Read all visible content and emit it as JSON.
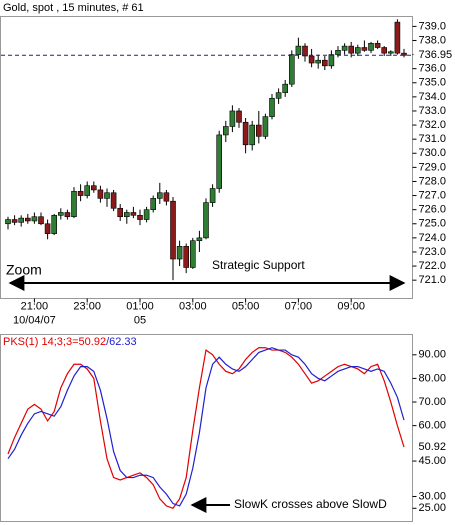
{
  "chart_data": [
    {
      "type": "candlestick",
      "title": "Gold, spot , 15 minutes, # 61",
      "categories": [
        null,
        null,
        null,
        null,
        "21:00",
        null,
        null,
        null,
        null,
        null,
        null,
        null,
        "23:00",
        null,
        null,
        null,
        null,
        null,
        null,
        null,
        "01:00",
        null,
        null,
        null,
        null,
        null,
        null,
        null,
        "03:00",
        null,
        null,
        null,
        null,
        null,
        null,
        null,
        "05:00",
        null,
        null,
        null,
        null,
        null,
        null,
        null,
        "07:00",
        null,
        null,
        null,
        null,
        null,
        null,
        null,
        "09:00",
        null,
        null,
        null,
        null,
        null,
        null,
        null,
        null
      ],
      "date_labels": [
        {
          "category": "21:00",
          "label": "10/04/07"
        },
        {
          "category": "01:00",
          "label": "05"
        }
      ],
      "open": [
        725.0,
        725.3,
        725.1,
        725.4,
        725.2,
        725.5,
        725.0,
        724.3,
        725.6,
        725.8,
        725.5,
        727.3,
        727.0,
        727.7,
        727.4,
        726.8,
        727.2,
        726.1,
        725.5,
        725.8,
        725.6,
        725.3,
        726.0,
        726.8,
        727.2,
        726.6,
        722.5,
        723.4,
        721.9,
        723.8,
        724.0,
        726.5,
        727.5,
        731.3,
        731.9,
        733.0,
        732.2,
        730.6,
        732.0,
        731.2,
        732.6,
        733.9,
        734.3,
        734.9,
        737.0,
        737.6,
        736.9,
        736.4,
        736.6,
        736.2,
        737.0,
        737.3,
        737.6,
        737.1,
        737.5,
        737.3,
        737.8,
        737.5,
        737.1,
        739.3,
        737.1
      ],
      "high": [
        725.5,
        725.6,
        725.6,
        725.7,
        725.8,
        725.8,
        725.3,
        725.7,
        726.1,
        726.0,
        727.6,
        727.8,
        728.0,
        728.0,
        727.7,
        727.5,
        727.4,
        726.4,
        726.0,
        726.2,
        726.0,
        726.2,
        727.0,
        727.9,
        727.4,
        726.9,
        723.8,
        723.6,
        724.0,
        724.5,
        726.8,
        727.8,
        731.6,
        732.3,
        733.4,
        733.2,
        732.5,
        732.3,
        733.0,
        732.8,
        734.2,
        734.6,
        735.2,
        737.3,
        738.2,
        737.8,
        737.4,
        737.0,
        736.9,
        737.3,
        737.6,
        737.8,
        737.9,
        737.7,
        738.0,
        737.9,
        738.0,
        737.6,
        737.3,
        739.5,
        737.4
      ],
      "low": [
        724.6,
        724.9,
        724.8,
        725.0,
        725.0,
        724.9,
        723.9,
        724.2,
        725.3,
        725.3,
        725.4,
        726.6,
        726.8,
        727.2,
        726.5,
        726.2,
        725.9,
        725.2,
        725.0,
        725.4,
        724.9,
        725.1,
        725.8,
        726.4,
        726.3,
        721.0,
        722.0,
        721.5,
        721.8,
        723.0,
        723.9,
        726.2,
        727.2,
        730.8,
        731.5,
        731.8,
        730.0,
        730.2,
        730.7,
        731.0,
        732.4,
        733.5,
        734.0,
        734.7,
        736.7,
        736.5,
        736.1,
        736.0,
        735.9,
        736.0,
        736.8,
        737.0,
        736.8,
        736.9,
        737.2,
        737.1,
        737.4,
        736.9,
        736.9,
        737.0,
        736.8
      ],
      "close": [
        725.3,
        725.1,
        725.4,
        725.2,
        725.5,
        725.0,
        724.3,
        725.6,
        725.8,
        725.5,
        727.3,
        727.0,
        727.7,
        727.4,
        726.8,
        727.2,
        726.1,
        725.5,
        725.8,
        725.6,
        725.3,
        726.0,
        726.8,
        727.2,
        726.6,
        722.5,
        723.4,
        721.9,
        723.8,
        724.0,
        726.5,
        727.5,
        731.3,
        731.9,
        733.0,
        732.2,
        730.6,
        732.0,
        731.2,
        732.6,
        733.9,
        734.3,
        734.9,
        737.0,
        737.6,
        736.9,
        736.4,
        736.6,
        736.2,
        737.0,
        737.3,
        737.6,
        737.1,
        737.5,
        737.3,
        737.8,
        737.5,
        737.1,
        737.2,
        737.1,
        736.95
      ],
      "up_color": "#2e7d32",
      "down_color": "#8b1a1a",
      "last_price_color": "#1a1aa0",
      "ylim": [
        719.7,
        739.7
      ],
      "yticks": [
        {
          "value": 721,
          "label": "721.0"
        },
        {
          "value": 722,
          "label": "722.0"
        },
        {
          "value": 723,
          "label": "723.0"
        },
        {
          "value": 724,
          "label": "724.0"
        },
        {
          "value": 725,
          "label": "725.0"
        },
        {
          "value": 726,
          "label": "726.0"
        },
        {
          "value": 727,
          "label": "727.0"
        },
        {
          "value": 728,
          "label": "728.0"
        },
        {
          "value": 729,
          "label": "729.0"
        },
        {
          "value": 730,
          "label": "730.0"
        },
        {
          "value": 731,
          "label": "731.0"
        },
        {
          "value": 732,
          "label": "732.0"
        },
        {
          "value": 733,
          "label": "733.0"
        },
        {
          "value": 734,
          "label": "734.0"
        },
        {
          "value": 735,
          "label": "735.0"
        },
        {
          "value": 736,
          "label": "736.0"
        },
        {
          "value": 737,
          "label": "737.0"
        },
        {
          "value": 738,
          "label": "738.0"
        },
        {
          "value": 739,
          "label": "739.0"
        }
      ],
      "annotations": [
        "Zoom",
        "Strategic Support"
      ]
    },
    {
      "type": "line",
      "title": "PKS(1) 14;3;3=",
      "value_separator": "/",
      "series": [
        {
          "color": "#e00000",
          "values": [
            48,
            55,
            61,
            67,
            69,
            67,
            62,
            66,
            76,
            82,
            86,
            86,
            84,
            80,
            62,
            46,
            38,
            37,
            38,
            39,
            40,
            38,
            35,
            29,
            26,
            25,
            29,
            38,
            58,
            76,
            92,
            90,
            86,
            83,
            82,
            84,
            88,
            91,
            93,
            93,
            92,
            92,
            91,
            89,
            86,
            82,
            78,
            79,
            81,
            83,
            85,
            86,
            85,
            84,
            82,
            85,
            86,
            79,
            70,
            60,
            50.92
          ]
        },
        {
          "color": "#2020d0",
          "values": [
            46,
            50,
            56,
            61,
            65,
            66,
            65,
            64,
            68,
            75,
            81,
            85,
            85,
            83,
            75,
            63,
            49,
            41,
            38,
            38,
            39,
            39,
            38,
            34,
            31,
            27,
            26,
            31,
            42,
            57,
            76,
            86,
            89,
            86,
            84,
            83,
            85,
            88,
            91,
            92,
            93,
            92,
            92,
            90,
            89,
            86,
            82,
            80,
            79,
            81,
            83,
            84,
            85,
            85,
            84,
            83,
            84,
            83,
            78,
            72,
            62.33
          ]
        }
      ],
      "ylim": [
        19.4,
        98.6
      ],
      "yticks": [
        {
          "value": 25,
          "label": "25.00"
        },
        {
          "value": 30,
          "label": "30.00"
        },
        {
          "value": 45,
          "label": "45.00"
        },
        {
          "value": 60,
          "label": "60.00"
        },
        {
          "value": 70,
          "label": "70.00"
        },
        {
          "value": 80,
          "label": "80.00"
        },
        {
          "value": 90,
          "label": "90.00"
        }
      ],
      "annotation": "SlowK crosses above SlowD"
    }
  ]
}
